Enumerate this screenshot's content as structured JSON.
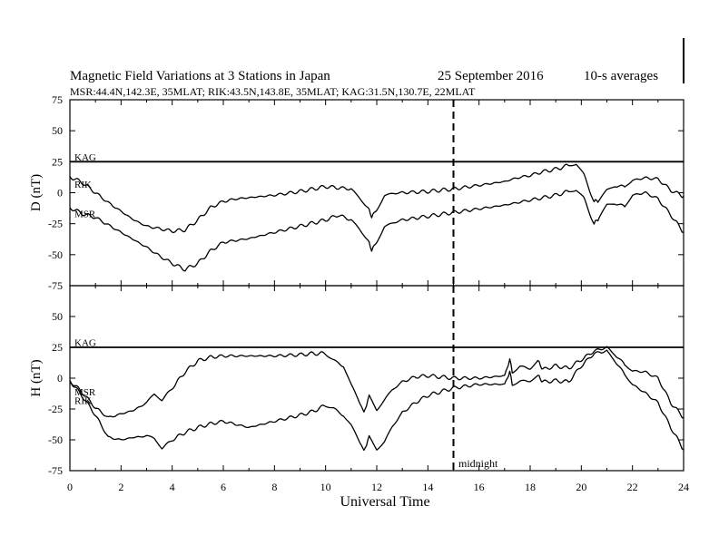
{
  "header": {
    "title": "Magnetic Field Variations at 3 Stations in Japan",
    "date": "25 September 2016",
    "averaging": "10-s averages",
    "stations_line": "MSR:44.4N,142.3E, 35MLAT;   RIK:43.5N,143.8E, 35MLAT;   KAG:31.5N,130.7E, 22MLAT"
  },
  "annotations": {
    "midnight": "midnight"
  },
  "chart_data": [
    {
      "type": "line",
      "panel": "top",
      "ylabel": "D (nT)",
      "ylim": [
        -75,
        75
      ],
      "yticks": [
        -75,
        -50,
        -25,
        0,
        25,
        50,
        75
      ],
      "xlim": [
        0,
        24
      ],
      "xticks": [
        0,
        2,
        4,
        6,
        8,
        10,
        12,
        14,
        16,
        18,
        20,
        22,
        24
      ],
      "vline_x": 15,
      "series": [
        {
          "name": "KAG",
          "label_y": 29,
          "x": [
            0,
            24
          ],
          "values": [
            25,
            25
          ]
        },
        {
          "name": "RIK",
          "label_y": 7,
          "x": [
            0,
            0.5,
            1.0,
            1.5,
            2.0,
            2.5,
            3.0,
            3.5,
            4.0,
            4.5,
            5.0,
            5.5,
            6.0,
            6.5,
            7.0,
            8.0,
            9.0,
            9.5,
            10.0,
            10.5,
            11.0,
            11.3,
            11.6,
            11.8,
            12.0,
            12.3,
            12.6,
            13.0,
            14.0,
            15.0,
            16.0,
            17.0,
            17.5,
            18.0,
            18.5,
            19.0,
            19.5,
            19.8,
            20.1,
            20.5,
            20.7,
            21.0,
            21.3,
            21.7,
            22.0,
            22.5,
            23.0,
            23.5,
            24.0
          ],
          "values": [
            13,
            8,
            0,
            -8,
            -15,
            -22,
            -27,
            -29,
            -31,
            -30,
            -22,
            -12,
            -7,
            -5,
            -4,
            -2,
            1,
            3,
            5,
            4,
            3,
            -3,
            -10,
            -19,
            -14,
            -3,
            -1,
            0,
            1,
            3,
            6,
            9,
            12,
            14,
            17,
            19,
            22,
            23,
            14,
            -7,
            -6,
            2,
            6,
            4,
            10,
            12,
            11,
            2,
            -3
          ]
        },
        {
          "name": "MSR",
          "label_y": -17,
          "x": [
            0,
            0.5,
            1.0,
            1.5,
            2.0,
            2.5,
            3.0,
            3.5,
            4.0,
            4.5,
            5.0,
            5.5,
            6.0,
            7.0,
            8.0,
            9.0,
            10.0,
            10.5,
            11.0,
            11.3,
            11.6,
            11.8,
            12.0,
            12.3,
            12.6,
            13.0,
            14.0,
            15.0,
            16.0,
            17.0,
            17.5,
            18.0,
            18.5,
            19.0,
            19.5,
            19.8,
            20.1,
            20.5,
            20.7,
            21.0,
            21.3,
            21.7,
            22.0,
            22.5,
            23.0,
            23.5,
            24.0
          ],
          "values": [
            -12,
            -17,
            -20,
            -26,
            -32,
            -38,
            -44,
            -51,
            -57,
            -62,
            -57,
            -47,
            -40,
            -37,
            -32,
            -27,
            -22,
            -18,
            -22,
            -28,
            -36,
            -46,
            -40,
            -28,
            -25,
            -22,
            -19,
            -16,
            -13,
            -10,
            -8,
            -6,
            -4,
            -2,
            1,
            2,
            -5,
            -25,
            -20,
            -10,
            -8,
            -12,
            -2,
            0,
            -5,
            -18,
            -32
          ]
        }
      ]
    },
    {
      "type": "line",
      "panel": "bottom",
      "ylabel": "H (nT)",
      "xlabel": "Universal Time",
      "ylim": [
        -75,
        75
      ],
      "yticks": [
        -75,
        -50,
        -25,
        0,
        25,
        50,
        75
      ],
      "xlim": [
        0,
        24
      ],
      "xticks": [
        0,
        2,
        4,
        6,
        8,
        10,
        12,
        14,
        16,
        18,
        20,
        22,
        24
      ],
      "vline_x": 15,
      "series": [
        {
          "name": "KAG",
          "label_y": 29,
          "x": [
            0,
            24
          ],
          "values": [
            25,
            25
          ]
        },
        {
          "name": "MSR",
          "label_y": -11,
          "x": [
            0,
            0.5,
            1.0,
            1.5,
            2.0,
            2.5,
            3.0,
            3.3,
            3.6,
            4.0,
            4.5,
            5.0,
            5.5,
            6.0,
            7.0,
            8.0,
            9.0,
            9.5,
            10.0,
            10.3,
            10.7,
            11.0,
            11.3,
            11.5,
            11.7,
            12.0,
            12.3,
            12.6,
            13.0,
            13.5,
            14.0,
            15.0,
            16.0,
            17.0,
            17.2,
            17.3,
            17.6,
            18.0,
            18.3,
            18.5,
            19.0,
            19.5,
            20.0,
            20.5,
            21.0,
            21.3,
            21.7,
            22.0,
            22.5,
            23.0,
            23.5,
            24.0
          ],
          "values": [
            -2,
            -12,
            -24,
            -32,
            -29,
            -26,
            -20,
            -14,
            -18,
            -8,
            5,
            14,
            17,
            18,
            18,
            18,
            19,
            20,
            20,
            15,
            10,
            -5,
            -18,
            -28,
            -15,
            -26,
            -18,
            -10,
            -3,
            1,
            2,
            0,
            0,
            2,
            15,
            5,
            10,
            8,
            14,
            7,
            10,
            8,
            15,
            22,
            25,
            20,
            10,
            6,
            5,
            0,
            -20,
            -32
          ]
        },
        {
          "name": "RIK",
          "label_y": -18,
          "x": [
            0,
            0.5,
            1.0,
            1.5,
            2.0,
            2.5,
            3.0,
            3.3,
            3.6,
            4.0,
            4.5,
            5.0,
            5.5,
            6.0,
            7.0,
            8.0,
            9.0,
            9.5,
            10.0,
            10.3,
            10.7,
            11.0,
            11.3,
            11.5,
            11.7,
            12.0,
            12.3,
            12.6,
            13.0,
            13.5,
            14.0,
            15.0,
            16.0,
            17.0,
            17.2,
            17.3,
            17.6,
            18.0,
            18.3,
            18.5,
            19.0,
            19.5,
            20.0,
            20.5,
            21.0,
            21.3,
            21.7,
            22.0,
            22.5,
            23.0,
            23.5,
            24.0
          ],
          "values": [
            -2,
            -15,
            -30,
            -48,
            -50,
            -48,
            -47,
            -50,
            -57,
            -50,
            -44,
            -40,
            -37,
            -35,
            -40,
            -35,
            -30,
            -27,
            -22,
            -24,
            -30,
            -38,
            -50,
            -59,
            -48,
            -58,
            -52,
            -40,
            -28,
            -20,
            -14,
            -8,
            -5,
            -5,
            5,
            -5,
            -2,
            -2,
            2,
            -3,
            -2,
            -3,
            10,
            20,
            22,
            15,
            2,
            -5,
            -12,
            -20,
            -40,
            -58
          ]
        }
      ]
    }
  ]
}
